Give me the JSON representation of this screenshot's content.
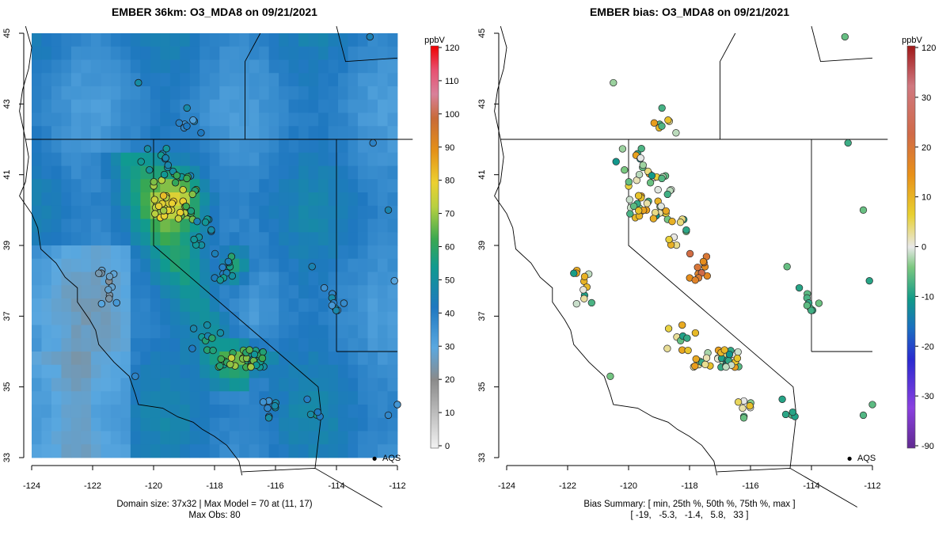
{
  "colors": {
    "low_bg": "#4aa0dc",
    "mid_bg": "#1f7fb0",
    "green": "#3aa060",
    "yellow": "#e8d23a",
    "red": "#e0241c",
    "map_line": "#000000"
  },
  "panels": [
    {
      "id": "model",
      "title": "EMBER 36km: O3_MDA8 on 09/21/2021",
      "xticks": [
        "-124",
        "-122",
        "-120",
        "-118",
        "-116",
        "-114",
        "-112"
      ],
      "yticks": [
        "33",
        "35",
        "37",
        "39",
        "41",
        "43",
        "45"
      ],
      "footer_lines": [
        "Domain size: 37x32 | Max Model = 70 at (11, 17)",
        "Max Obs: 80"
      ],
      "legend_point_label": "AQS",
      "colorbar": {
        "unit": "ppbV",
        "ticks": [
          "120",
          "110",
          "100",
          "90",
          "80",
          "70",
          "60",
          "50",
          "40",
          "30",
          "20",
          "10",
          "0"
        ]
      }
    },
    {
      "id": "bias",
      "title": "EMBER bias: O3_MDA8 on 09/21/2021",
      "xticks": [
        "-124",
        "-122",
        "-120",
        "-118",
        "-116",
        "-114",
        "-112"
      ],
      "yticks": [
        "33",
        "35",
        "37",
        "39",
        "41",
        "43",
        "45"
      ],
      "footer_lines": [
        "Bias Summary: [ min, 25th %, 50th %, 75th %, max ]",
        "[ -19,   -5.3,   -1.4,   5.8,   33 ]"
      ],
      "legend_point_label": "AQS",
      "colorbar": {
        "unit": "ppbV",
        "ticks": [
          "120",
          "30",
          "20",
          "10",
          "0",
          "-10",
          "-20",
          "-30",
          "-90"
        ]
      }
    }
  ],
  "chart_data": [
    {
      "type": "heatmap",
      "title": "EMBER 36km: O3_MDA8 on 09/21/2021",
      "xlim": [
        -124,
        -112
      ],
      "ylim": [
        33,
        45
      ],
      "color_unit": "ppbV",
      "color_range": [
        0,
        120
      ],
      "domain_size": "37x32",
      "max_model": 70,
      "max_model_cell": [
        11,
        17
      ],
      "max_obs": 80,
      "legend": "AQS"
    },
    {
      "type": "scatter",
      "title": "EMBER bias: O3_MDA8 on 09/21/2021",
      "xlim": [
        -124,
        -112
      ],
      "ylim": [
        33,
        45
      ],
      "color_unit": "ppbV",
      "bias_summary": {
        "min": -19,
        "p25": -5.3,
        "p50": -1.4,
        "p75": 5.8,
        "max": 33
      },
      "legend": "AQS"
    }
  ]
}
